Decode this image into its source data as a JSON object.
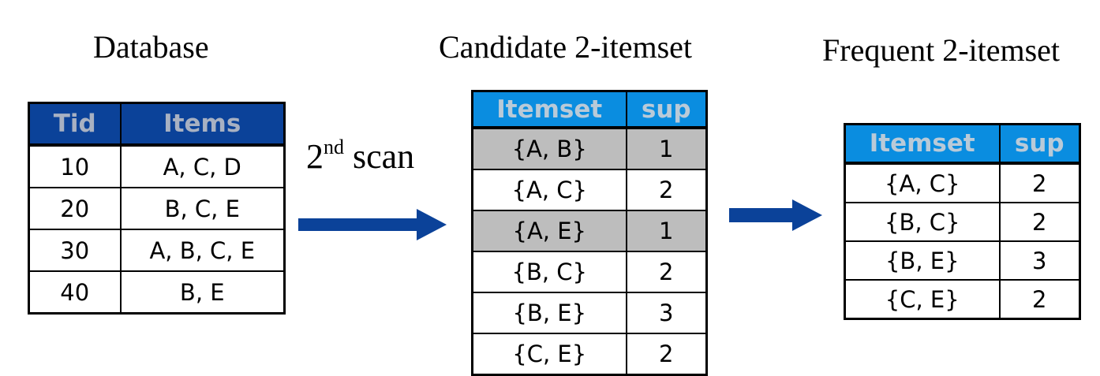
{
  "database": {
    "title": "Database",
    "headers": [
      "Tid",
      "Items"
    ],
    "rows": [
      {
        "tid": "10",
        "items": "A, C, D"
      },
      {
        "tid": "20",
        "items": "B, C, E"
      },
      {
        "tid": "30",
        "items": "A, B, C, E"
      },
      {
        "tid": "40",
        "items": "B, E"
      }
    ]
  },
  "scan": {
    "number": "2",
    "suffix": "nd",
    "word": " scan"
  },
  "candidate": {
    "title": "Candidate 2-itemset",
    "headers": [
      "Itemset",
      "sup"
    ],
    "rows": [
      {
        "itemset": "{A, B}",
        "sup": "1",
        "pruned": true
      },
      {
        "itemset": "{A, C}",
        "sup": "2",
        "pruned": false
      },
      {
        "itemset": "{A, E}",
        "sup": "1",
        "pruned": true
      },
      {
        "itemset": "{B, C}",
        "sup": "2",
        "pruned": false
      },
      {
        "itemset": "{B, E}",
        "sup": "3",
        "pruned": false
      },
      {
        "itemset": "{C, E}",
        "sup": "2",
        "pruned": false
      }
    ]
  },
  "frequent": {
    "title": "Frequent 2-itemset",
    "headers": [
      "Itemset",
      "sup"
    ],
    "rows": [
      {
        "itemset": "{A, C}",
        "sup": "2"
      },
      {
        "itemset": "{B, C}",
        "sup": "2"
      },
      {
        "itemset": "{B, E}",
        "sup": "3"
      },
      {
        "itemset": "{C, E}",
        "sup": "2"
      }
    ]
  },
  "colors": {
    "db_header": "#0b4299",
    "header_light": "#0a8de0",
    "header_text": "#b9cad8",
    "pruned_row": "#bdbdbd",
    "arrow": "#0b4299"
  }
}
